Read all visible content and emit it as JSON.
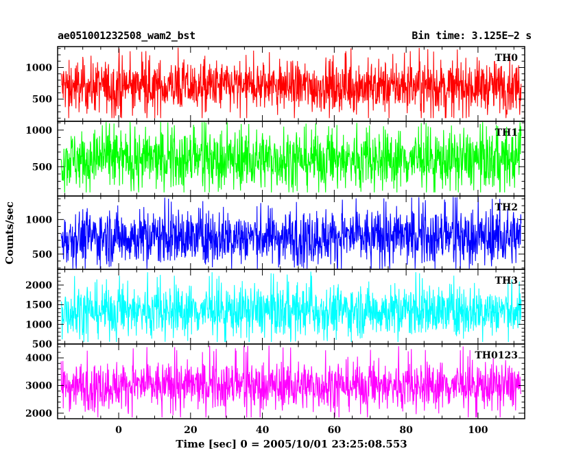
{
  "title_left": "ae051001232508_wam2_bst",
  "title_right": "Bin time: 3.125E−2 s",
  "ylabel": "Counts/sec",
  "xlabel": "Time [sec] 0 = 2005/10/01 23:25:08.553",
  "chart_data": {
    "type": "line",
    "title": "ae051001232508_wam2_bst",
    "bin_time_s": 0.03125,
    "xlabel": "Time [sec] 0 = 2005/10/01 23:25:08.553",
    "ylabel": "Counts/sec",
    "xlim": [
      -17,
      113
    ],
    "x_ticks": [
      0,
      20,
      40,
      60,
      80,
      100
    ],
    "data_range": [
      -16,
      112
    ],
    "panels": [
      {
        "name": "TH0",
        "color": "#ff0000",
        "ylim": [
          150,
          1330
        ],
        "y_ticks": [
          500,
          1000
        ],
        "mean": 700,
        "typical_low": 300,
        "typical_high": 1100,
        "min": 200,
        "max": 1320
      },
      {
        "name": "TH1",
        "color": "#00ff00",
        "ylim": [
          100,
          1120
        ],
        "y_ticks": [
          500,
          1000
        ],
        "mean": 600,
        "typical_low": 200,
        "typical_high": 1000,
        "min": 150,
        "max": 1110
      },
      {
        "name": "TH2",
        "color": "#0000ff",
        "ylim": [
          280,
          1340
        ],
        "y_ticks": [
          500,
          1000
        ],
        "mean": 750,
        "typical_low": 350,
        "typical_high": 1150,
        "min": 290,
        "max": 1330
      },
      {
        "name": "TH3",
        "color": "#00ffff",
        "ylim": [
          500,
          2400
        ],
        "y_ticks": [
          500,
          1000,
          1500,
          2000
        ],
        "mean": 1350,
        "typical_low": 700,
        "typical_high": 2000,
        "min": 550,
        "max": 2350
      },
      {
        "name": "TH0123",
        "color": "#ff00ff",
        "ylim": [
          1800,
          4500
        ],
        "y_ticks": [
          2000,
          3000,
          4000
        ],
        "mean": 3000,
        "typical_low": 2200,
        "typical_high": 3900,
        "min": 1850,
        "max": 4450
      }
    ]
  }
}
